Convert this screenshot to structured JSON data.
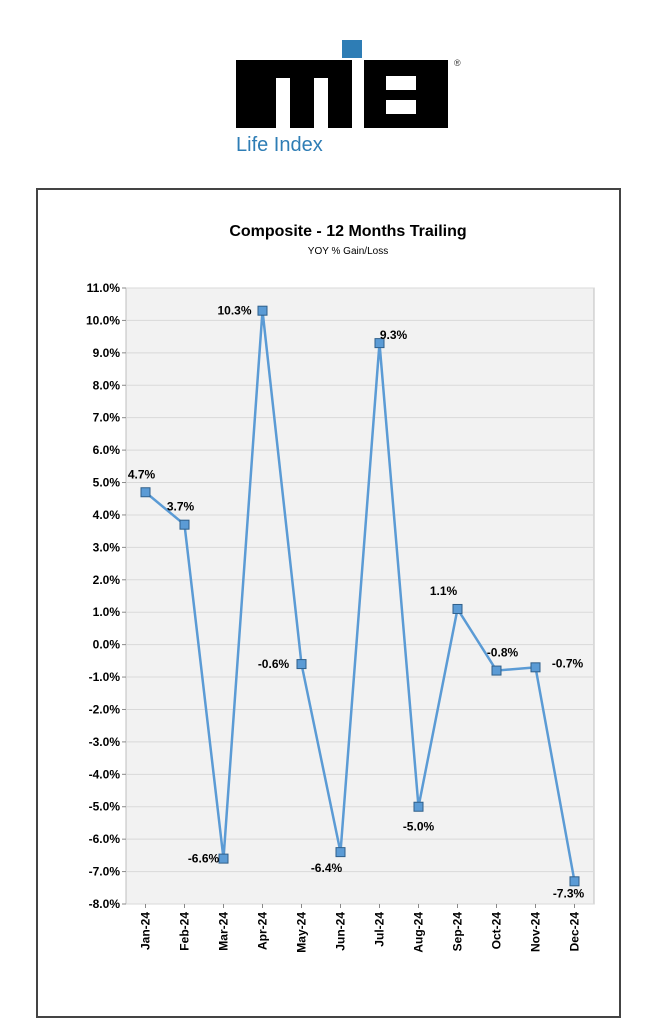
{
  "logo": {
    "wordmark": "MIB",
    "registered": "®",
    "subtitle": "Life Index",
    "colors": {
      "black": "#000000",
      "accent": "#2e7db5"
    }
  },
  "chart_data": {
    "type": "line",
    "title": "Composite - 12 Months Trailing",
    "subtitle": "YOY % Gain/Loss",
    "categories": [
      "Jan-24",
      "Feb-24",
      "Mar-24",
      "Apr-24",
      "May-24",
      "Jun-24",
      "Jul-24",
      "Aug-24",
      "Sep-24",
      "Oct-24",
      "Nov-24",
      "Dec-24"
    ],
    "series": [
      {
        "values": [
          4.7,
          3.7,
          -6.6,
          10.3,
          -0.6,
          -6.4,
          9.3,
          -5.0,
          1.1,
          -0.8,
          -0.7,
          -7.3
        ],
        "labels": [
          "4.7%",
          "3.7%",
          "-6.6%",
          "10.3%",
          "-0.6%",
          "-6.4%",
          "9.3%",
          "-5.0%",
          "1.1%",
          "-0.8%",
          "-0.7%",
          "-7.3%"
        ]
      }
    ],
    "yticks": [
      "11.0%",
      "10.0%",
      "9.0%",
      "8.0%",
      "7.0%",
      "6.0%",
      "5.0%",
      "4.0%",
      "3.0%",
      "2.0%",
      "1.0%",
      "0.0%",
      "-1.0%",
      "-2.0%",
      "-3.0%",
      "-4.0%",
      "-5.0%",
      "-6.0%",
      "-7.0%",
      "-8.0%"
    ],
    "ylim": [
      -8,
      11
    ],
    "grid": true,
    "colors": {
      "line": "#5b9bd5",
      "marker": "#5b9bd5",
      "plot_bg": "#f2f2f2",
      "grid": "#d9d9d9"
    }
  }
}
